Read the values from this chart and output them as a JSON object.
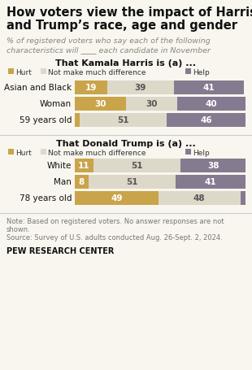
{
  "title_line1": "How voters view the impact of Harris'",
  "title_line2": "and Trump’s race, age and gender",
  "subtitle_line1": "% of registered voters who say each of the following",
  "subtitle_line2": "characteristics will ____ each candidate in November",
  "section1_title": "That Kamala Harris is (a) ...",
  "section2_title": "That Donald Trump is (a) ...",
  "colors": {
    "hurt": "#C9A44A",
    "not_much": "#DDD8C8",
    "help": "#857A90"
  },
  "harris_categories": [
    "Asian and Black",
    "Woman",
    "59 years old"
  ],
  "harris_data": [
    [
      19,
      39,
      41
    ],
    [
      30,
      30,
      40
    ],
    [
      3,
      51,
      46
    ]
  ],
  "trump_categories": [
    "White",
    "Man",
    "78 years old"
  ],
  "trump_data": [
    [
      11,
      51,
      38
    ],
    [
      8,
      51,
      41
    ],
    [
      49,
      48,
      3
    ]
  ],
  "note1": "Note: Based on registered voters. No answer responses are not",
  "note2": "shown.",
  "note3": "Source: Survey of U.S. adults conducted Aug. 26-Sept. 2, 2024.",
  "source_label": "PEW RESEARCH CENTER",
  "bg_color": "#F8F6EF"
}
